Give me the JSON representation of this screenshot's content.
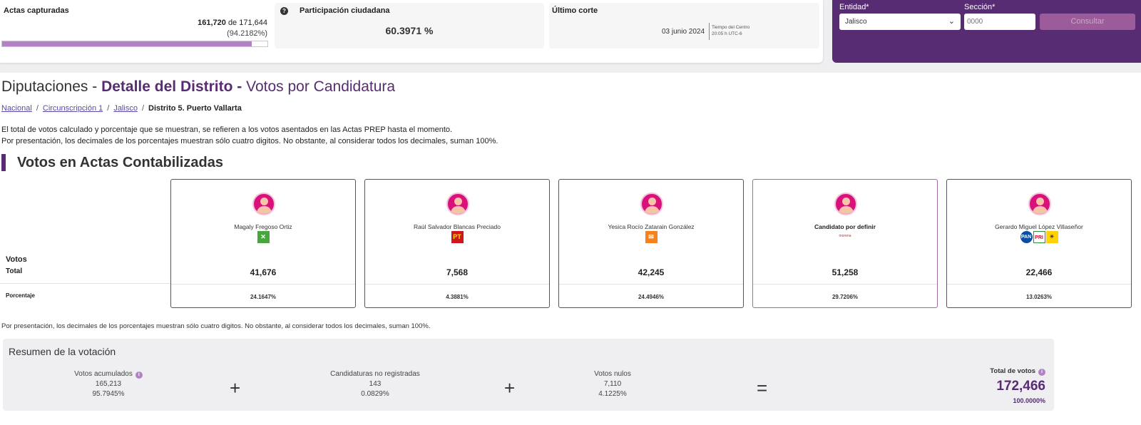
{
  "stats": {
    "actas_label": "Actas capturadas",
    "actas_captured": "161,720",
    "actas_of": "de 171,644",
    "actas_pct": "(94.2182%)",
    "actas_progress": 0.942182,
    "participation_label": "Participación ciudadana",
    "participation_value": "60.3971 %",
    "cut_label": "Último corte",
    "cut_date": "03 junio 2024",
    "cut_tz_line1": "Tiempo del Centro",
    "cut_tz_line2": "20:05 h UTC-6"
  },
  "consult": {
    "entidad_label": "Entidad*",
    "entidad_value": "Jalisco",
    "seccion_label": "Sección*",
    "seccion_placeholder": "0000",
    "button": "Consultar"
  },
  "title": {
    "part1": "Diputaciones - ",
    "part2": "Detalle del Distrito - ",
    "part3": "Votos por Candidatura"
  },
  "breadcrumb": {
    "nacional": "Nacional",
    "circ": "Circunscripción 1",
    "estado": "Jalisco",
    "distrito": "Distrito 5. Puerto Vallarta",
    "sep": "/"
  },
  "notice": {
    "line1": "El total de votos calculado y porcentaje que se muestran, se refieren a los votos asentados en las Actas PREP hasta el momento.",
    "line2": "Por presentación, los decimales de los porcentajes muestran sólo cuatro digitos. No obstante, al considerar todos los decimales, suman 100%."
  },
  "section_title": "Votos en Actas Contabilizadas",
  "row_labels": {
    "votos": "Votos",
    "total": "Total",
    "porcentaje": "Porcentaje"
  },
  "candidates": [
    {
      "name": "Magaly Fregoso Ortiz",
      "parties": [
        "verde-logo"
      ],
      "votes": "41,676",
      "pct": "24.1647%"
    },
    {
      "name": "Raúl Salvador Blancas Preciado",
      "parties": [
        "pt-logo"
      ],
      "votes": "7,568",
      "pct": "4.3881%"
    },
    {
      "name": "Yesica Rocío Zatarain González",
      "parties": [
        "movimiento-ciudadano-logo"
      ],
      "votes": "42,245",
      "pct": "24.4946%"
    },
    {
      "name": "Candidato por definir",
      "parties": [
        "morena-logo"
      ],
      "votes": "51,258",
      "pct": "29.7206%"
    },
    {
      "name": "Gerardo Miguel López Villaseñor",
      "parties": [
        "pan-logo",
        "pri-logo",
        "prd-logo"
      ],
      "votes": "22,466",
      "pct": "13.0263%"
    }
  ],
  "party_text": {
    "verde": "✕",
    "pt": "PT",
    "mc": "✉",
    "pan": "PAN",
    "pri": "PRI",
    "prd": "☀",
    "morena": "morena"
  },
  "footnote": "Por presentación, los decimales de los porcentajes muestran sólo cuatro digitos. No obstante, al considerar todos los decimales, suman 100%.",
  "summary": {
    "title": "Resumen de la votación",
    "acumulados_label": "Votos acumulados",
    "acumulados_value": "165,213",
    "acumulados_pct": "95.7945%",
    "noreg_label": "Candidaturas no registradas",
    "noreg_value": "143",
    "noreg_pct": "0.0829%",
    "nulos_label": "Votos nulos",
    "nulos_value": "7,110",
    "nulos_pct": "4.1225%",
    "plus": "+",
    "equals": "=",
    "total_label": "Total de votos",
    "total_value": "172,466",
    "total_pct": "100.0000%"
  },
  "colors": {
    "brand_purple": "#582c73",
    "accent_lilac": "#b283c4",
    "avatar_pink": "#d8127a",
    "highlight_border": "#a06aa7"
  }
}
